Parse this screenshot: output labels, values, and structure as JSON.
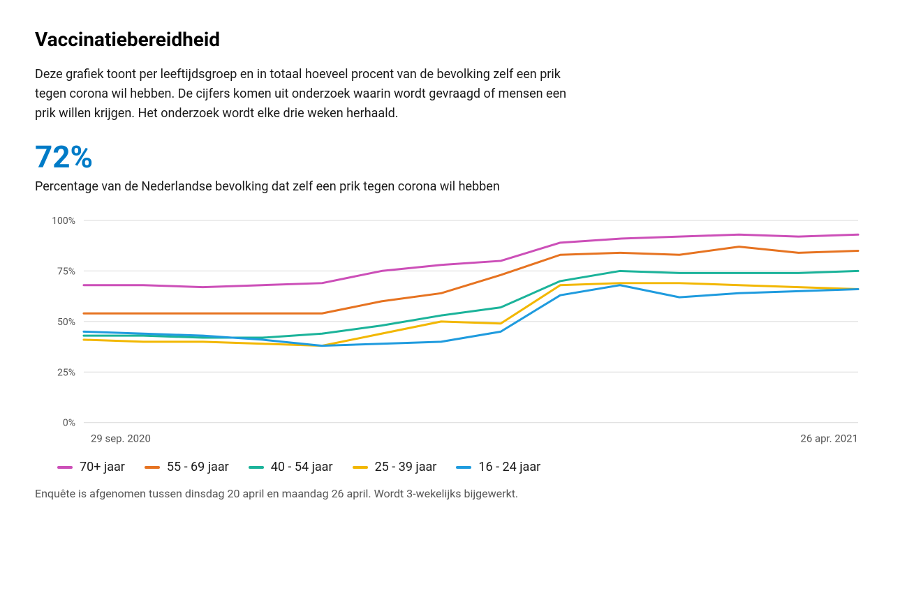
{
  "title": "Vaccinatiebereidheid",
  "description": "Deze grafiek toont per leeftijdsgroep en in totaal hoeveel procent van de bevolking zelf een prik tegen corona wil hebben. De cijfers komen uit onderzoek waarin wordt gevraagd of mensen een prik willen krijgen. Het onderzoek wordt elke drie weken herhaald.",
  "big_stat": "72%",
  "big_stat_color": "#007bc7",
  "stat_caption": "Percentage van de Nederlandse bevolking dat zelf een prik tegen corona wil hebben",
  "footnote": "Enquête is afgenomen tussen dinsdag 20 april en maandag 26 april. Wordt 3-wekelijks bijgewerkt.",
  "chart": {
    "type": "line",
    "background_color": "#ffffff",
    "grid_color": "#d9d9d9",
    "axis_text_color": "#555555",
    "ylim": [
      0,
      100
    ],
    "ytick_step": 25,
    "ytick_labels": [
      "0%",
      "25%",
      "50%",
      "75%",
      "100%"
    ],
    "x_start_label": "29 sep. 2020",
    "x_end_label": "26 apr. 2021",
    "n_points": 14,
    "line_width": 3,
    "series": [
      {
        "label": "70+ jaar",
        "color": "#cc4fb8",
        "values": [
          68,
          68,
          67,
          68,
          69,
          75,
          78,
          80,
          89,
          91,
          92,
          93,
          92,
          93
        ]
      },
      {
        "label": "55 - 69 jaar",
        "color": "#e67321",
        "values": [
          54,
          54,
          54,
          54,
          54,
          60,
          64,
          73,
          83,
          84,
          83,
          87,
          84,
          85
        ]
      },
      {
        "label": "40 - 54 jaar",
        "color": "#1bb39a",
        "values": [
          43,
          43,
          42,
          42,
          44,
          48,
          53,
          57,
          70,
          75,
          74,
          74,
          74,
          75
        ]
      },
      {
        "label": "25 - 39 jaar",
        "color": "#f2b701",
        "values": [
          41,
          40,
          40,
          39,
          38,
          44,
          50,
          49,
          68,
          69,
          69,
          68,
          67,
          66
        ]
      },
      {
        "label": "16 - 24 jaar",
        "color": "#1f9bde",
        "values": [
          45,
          44,
          43,
          41,
          38,
          39,
          40,
          45,
          63,
          68,
          62,
          64,
          65,
          66
        ]
      }
    ]
  }
}
